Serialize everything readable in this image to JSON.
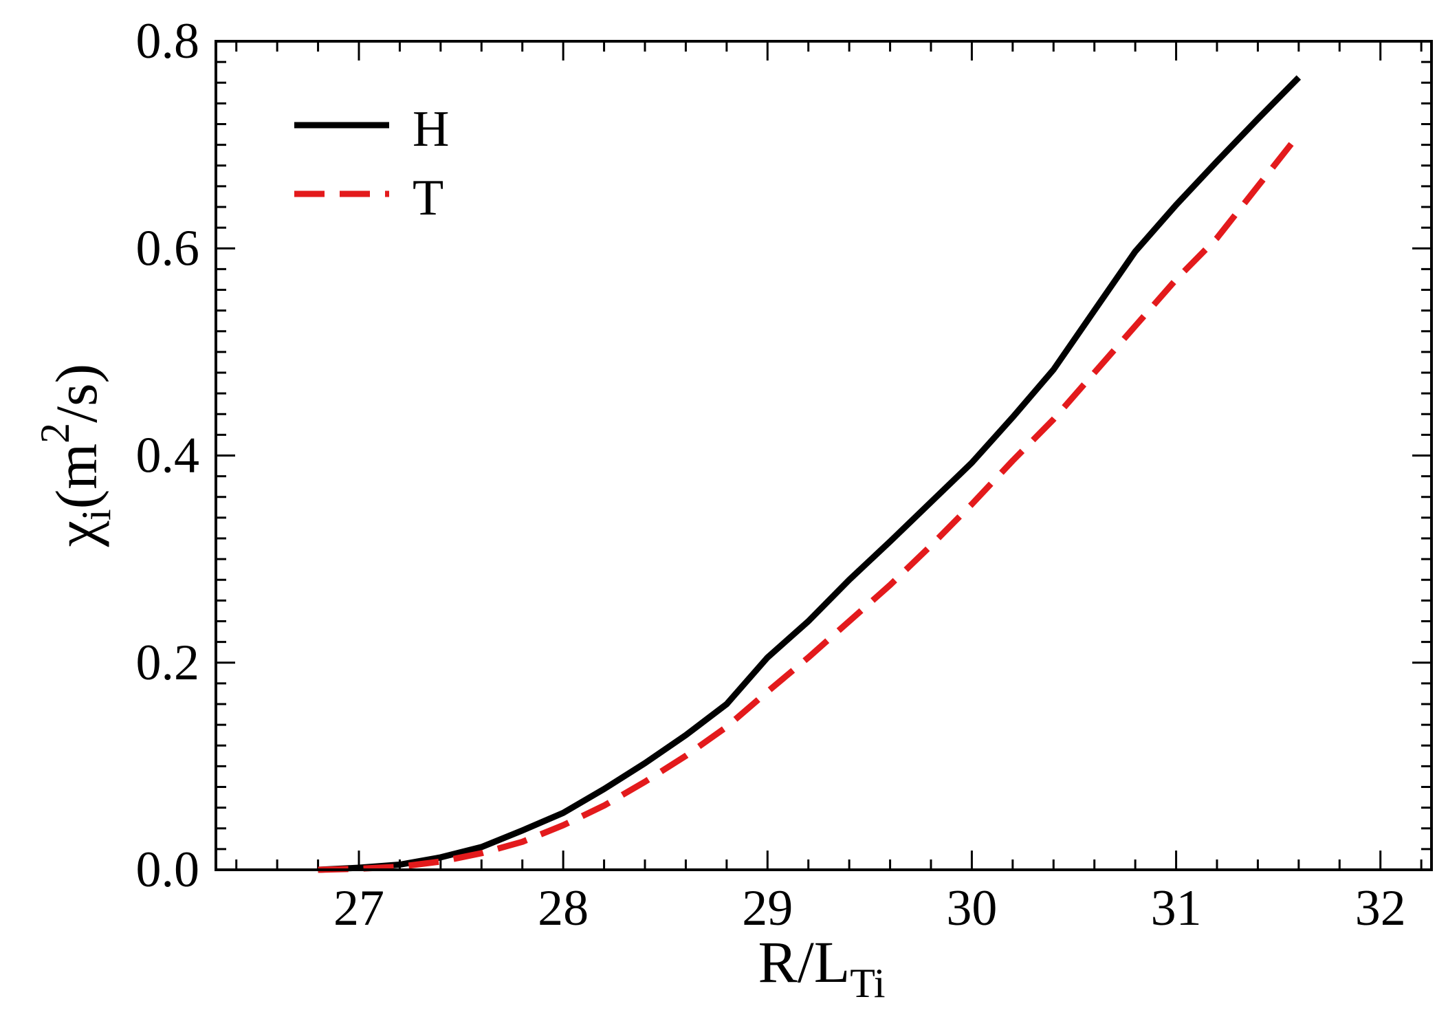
{
  "chart_data": {
    "type": "line",
    "xlabel": {
      "main": "R/L",
      "sub": "Ti"
    },
    "ylabel": {
      "main": "χ",
      "sub": "i",
      "unit_open": "(m",
      "sup": "2",
      "unit_close": "/s)"
    },
    "xlim": [
      26.3,
      32.25
    ],
    "ylim": [
      0,
      0.8
    ],
    "xticks": [
      27,
      28,
      29,
      30,
      31,
      32
    ],
    "yticks": [
      0,
      0.2,
      0.4,
      0.6,
      0.8
    ],
    "xtick_labels": [
      "27",
      "28",
      "29",
      "30",
      "31",
      "32"
    ],
    "ytick_labels": [
      "0.0",
      "0.2",
      "0.4",
      "0.6",
      "0.8"
    ],
    "grid": false,
    "legend_position": "top-left",
    "series": [
      {
        "name": "H",
        "color": "#000000",
        "style": "solid",
        "x": [
          26.8,
          27.0,
          27.2,
          27.4,
          27.6,
          27.8,
          28.0,
          28.2,
          28.4,
          28.6,
          28.8,
          29.0,
          29.2,
          29.4,
          29.6,
          29.8,
          30.0,
          30.2,
          30.4,
          30.6,
          30.8,
          31.0,
          31.2,
          31.4,
          31.6
        ],
        "y": [
          0.0,
          0.002,
          0.005,
          0.012,
          0.022,
          0.038,
          0.055,
          0.078,
          0.103,
          0.13,
          0.16,
          0.205,
          0.24,
          0.28,
          0.317,
          0.355,
          0.393,
          0.437,
          0.483,
          0.54,
          0.597,
          0.642,
          0.684,
          0.725,
          0.765
        ]
      },
      {
        "name": "T",
        "color": "#e31a1c",
        "style": "dashed",
        "x": [
          26.8,
          27.0,
          27.2,
          27.4,
          27.6,
          27.8,
          28.0,
          28.2,
          28.4,
          28.6,
          28.8,
          29.0,
          29.2,
          29.4,
          29.6,
          29.8,
          30.0,
          30.2,
          30.4,
          30.6,
          30.8,
          31.0,
          31.2,
          31.4,
          31.6
        ],
        "y": [
          0.0,
          0.001,
          0.003,
          0.008,
          0.016,
          0.027,
          0.043,
          0.062,
          0.085,
          0.11,
          0.138,
          0.172,
          0.205,
          0.24,
          0.275,
          0.313,
          0.353,
          0.395,
          0.435,
          0.48,
          0.525,
          0.57,
          0.61,
          0.66,
          0.71
        ]
      }
    ]
  }
}
